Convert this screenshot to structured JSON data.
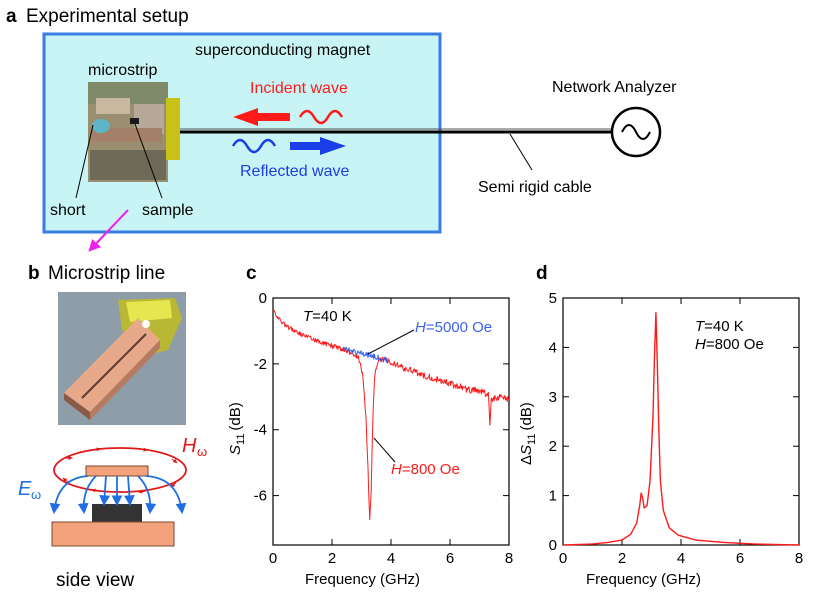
{
  "panel_a": {
    "letter": "a",
    "title": "Experimental setup",
    "magnet_label": "superconducting magnet",
    "microstrip_label": "microstrip",
    "incident_label": "Incident wave",
    "reflected_label": "Reflected wave",
    "analyzer_label": "Network Analyzer",
    "cable_label": "Semi rigid cable",
    "short_label": "short",
    "sample_label": "sample"
  },
  "panel_b": {
    "letter": "b",
    "title": "Microstrip line",
    "h_label": "H",
    "h_sub": "ω",
    "e_label": "E",
    "e_sub": "ω",
    "side_view_label": "side view"
  },
  "colors": {
    "magnet_fill": "#c8f4f6",
    "magnet_border": "#3a7de0",
    "incident": "#ff1a1a",
    "reflected": "#1a3ee8",
    "magenta": "#ee22ee",
    "trace_red": "#ff1a1a",
    "trace_blue": "#3a64ee",
    "copper": "#f4a27c",
    "dark_substrate": "#333333"
  },
  "chart_data": [
    {
      "panel": "c",
      "type": "line",
      "xlabel": "Frequency (GHz)",
      "ylabel_main": "S",
      "ylabel_sub": "11",
      "ylabel_unit": "(dB)",
      "xlim": [
        0,
        8
      ],
      "ylim": [
        -7.5,
        0
      ],
      "xticks": [
        0,
        2,
        4,
        6,
        8
      ],
      "yticks": [
        0,
        -2,
        -4,
        -6
      ],
      "xtick_labels": [
        "0",
        "2",
        "4",
        "6",
        "8"
      ],
      "ytick_labels": [
        "0",
        "-2",
        "-4",
        "-6"
      ],
      "annotation_T": "T",
      "annotation_T_rest": "=40 K",
      "series": [
        {
          "name": "H=800 Oe",
          "label_prefix": "H",
          "label_rest": "=800 Oe",
          "color": "#ff1a1a",
          "x": [
            0.0,
            0.25,
            0.5,
            1.0,
            1.5,
            2.0,
            2.5,
            2.9,
            3.05,
            3.15,
            3.22,
            3.28,
            3.33,
            3.38,
            3.44,
            3.55,
            3.7,
            4.0,
            4.5,
            5.0,
            5.5,
            6.0,
            6.5,
            7.0,
            7.3,
            7.35,
            7.4,
            7.6,
            8.0
          ],
          "y": [
            -0.35,
            -0.7,
            -0.88,
            -1.12,
            -1.3,
            -1.45,
            -1.6,
            -1.8,
            -2.4,
            -3.6,
            -5.2,
            -6.8,
            -5.8,
            -3.8,
            -2.4,
            -1.9,
            -1.85,
            -1.95,
            -2.15,
            -2.3,
            -2.45,
            -2.6,
            -2.75,
            -2.85,
            -2.9,
            -3.9,
            -3.1,
            -3.0,
            -3.1
          ]
        },
        {
          "name": "H=5000 Oe",
          "label_prefix": "H",
          "label_rest": "=5000 Oe",
          "color": "#3a64ee",
          "x": [
            2.4,
            2.7,
            3.0,
            3.3,
            3.6,
            3.9
          ],
          "y": [
            -1.55,
            -1.62,
            -1.68,
            -1.75,
            -1.82,
            -1.88
          ]
        }
      ]
    },
    {
      "panel": "d",
      "type": "line",
      "xlabel": "Frequency (GHz)",
      "ylabel_prefix": "Δ",
      "ylabel_main": "S",
      "ylabel_sub": "11",
      "ylabel_unit": "(dB)",
      "xlim": [
        0,
        8
      ],
      "ylim": [
        0,
        5
      ],
      "xticks": [
        0,
        2,
        4,
        6,
        8
      ],
      "yticks": [
        0,
        1,
        2,
        3,
        4,
        5
      ],
      "xtick_labels": [
        "0",
        "2",
        "4",
        "6",
        "8"
      ],
      "ytick_labels": [
        "0",
        "1",
        "2",
        "3",
        "4",
        "5"
      ],
      "annotation_T": "T",
      "annotation_T_rest": "=40 K",
      "annotation_H": "H",
      "annotation_H_rest": "=800 Oe",
      "series": [
        {
          "name": "ΔS11",
          "color": "#ff1a1a",
          "x": [
            0.0,
            1.0,
            1.5,
            2.0,
            2.3,
            2.5,
            2.6,
            2.65,
            2.7,
            2.75,
            2.85,
            2.95,
            3.05,
            3.1,
            3.15,
            3.2,
            3.25,
            3.3,
            3.4,
            3.6,
            3.9,
            4.5,
            5.5,
            6.5,
            8.0
          ],
          "y": [
            0.0,
            0.02,
            0.05,
            0.1,
            0.22,
            0.45,
            0.8,
            1.05,
            0.95,
            0.75,
            0.8,
            1.3,
            2.6,
            3.8,
            4.7,
            3.6,
            2.3,
            1.3,
            0.7,
            0.35,
            0.2,
            0.1,
            0.05,
            0.02,
            0.0
          ]
        }
      ]
    }
  ]
}
